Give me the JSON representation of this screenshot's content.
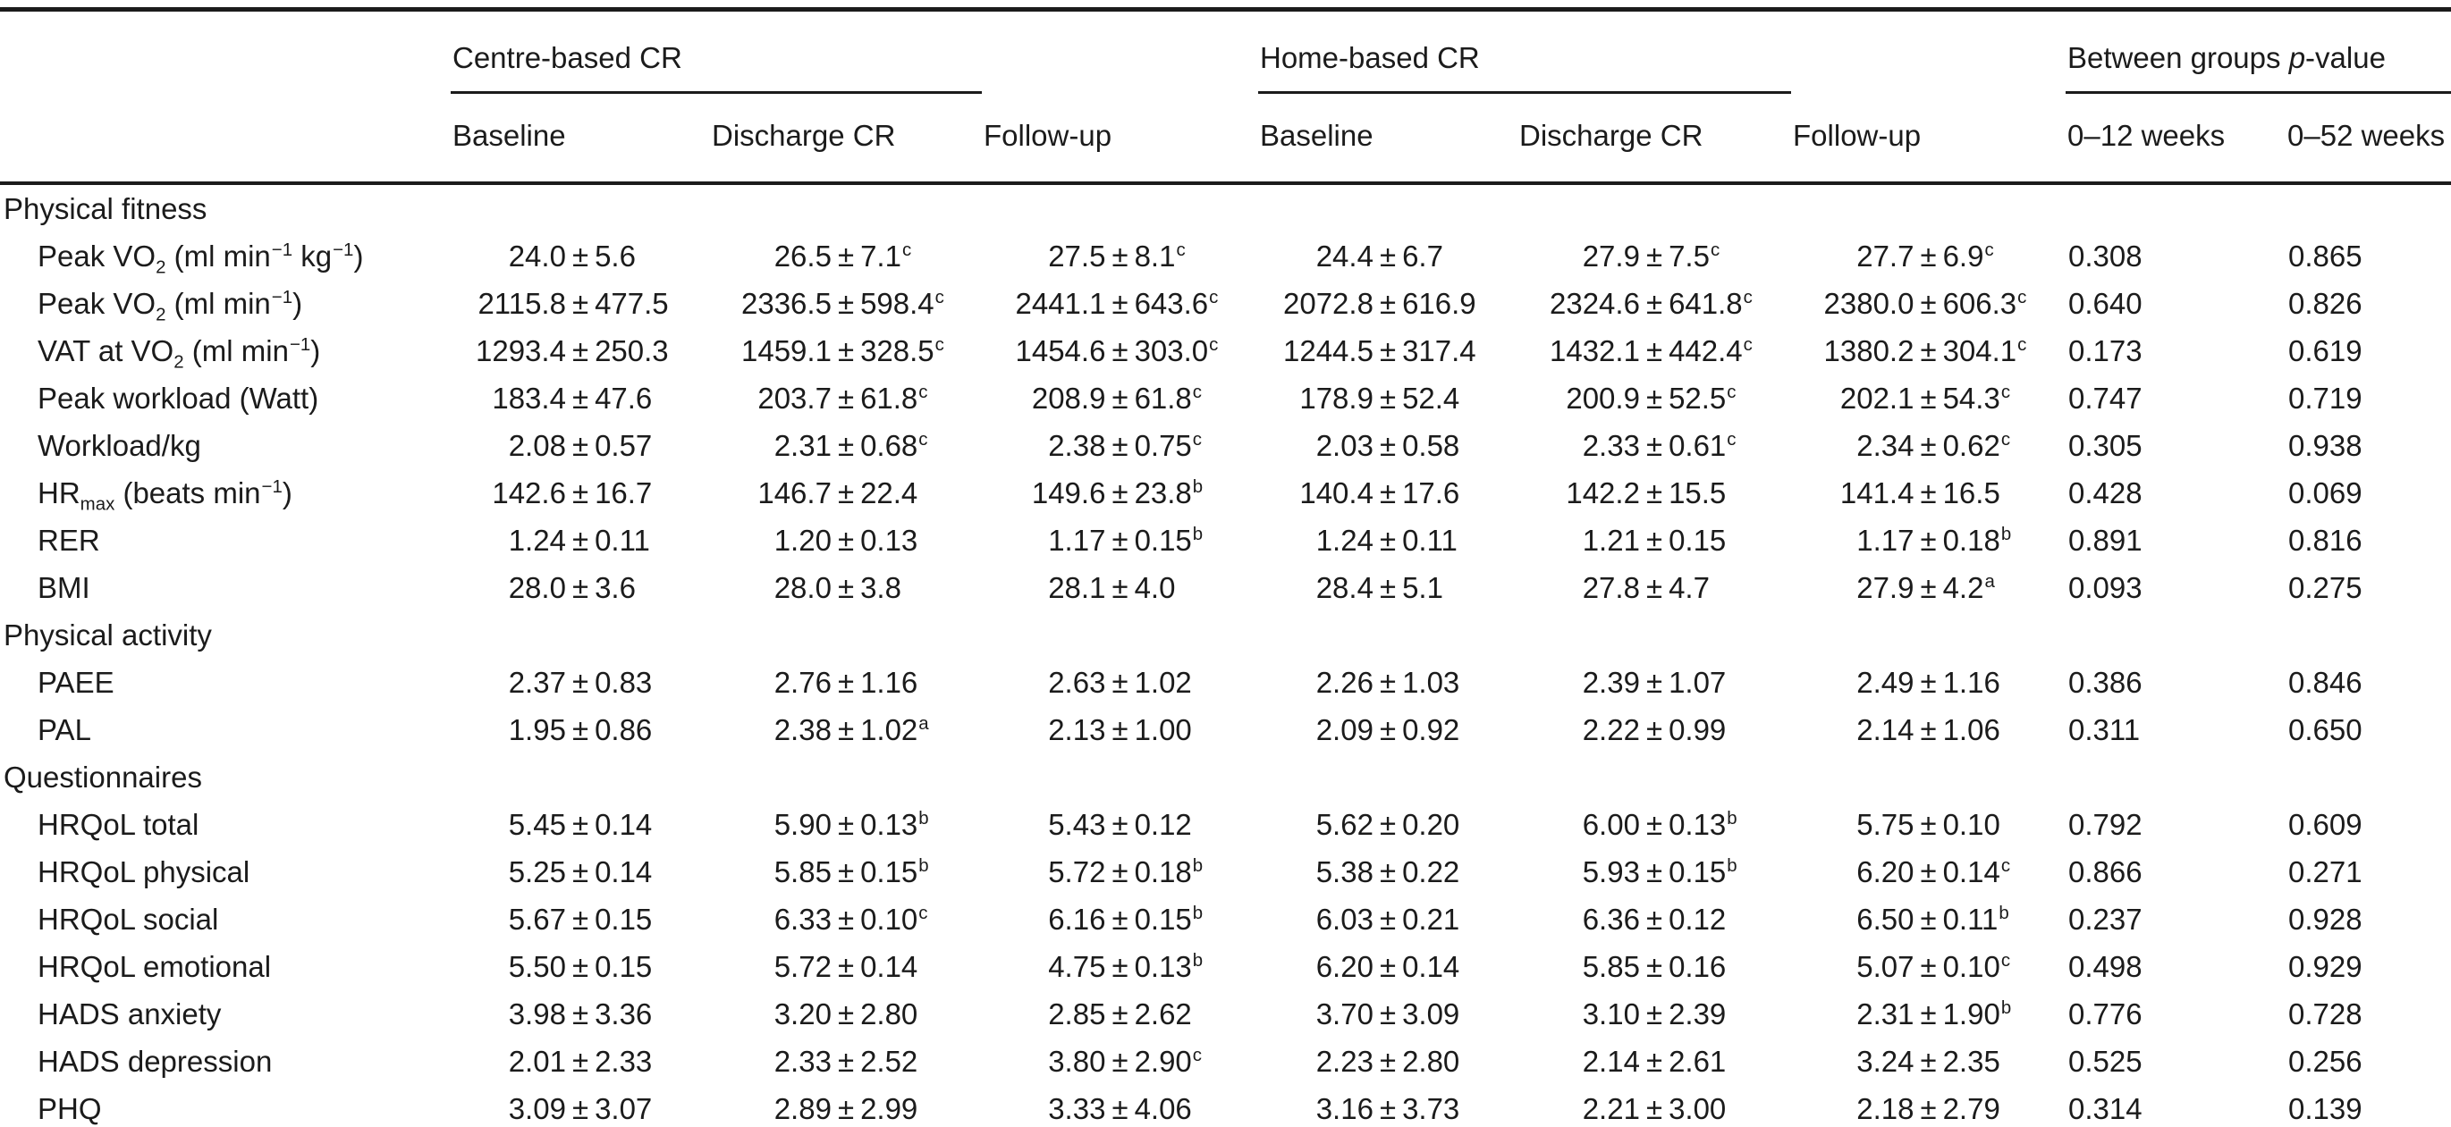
{
  "table": {
    "header": {
      "centre": "Centre-based CR",
      "home": "Home-based CR",
      "between_parts": [
        "Between groups ",
        [
          "i",
          "p"
        ],
        "-value"
      ],
      "sub": [
        "Baseline",
        "Discharge CR",
        "Follow-up",
        "Baseline",
        "Discharge CR",
        "Follow-up",
        "0–12 weeks",
        "0–52 weeks"
      ]
    },
    "sections": [
      {
        "title": "Physical fitness",
        "rows": [
          {
            "label": [
              "Peak VO",
              [
                "sub",
                "2"
              ],
              " (ml min",
              [
                "sup",
                "−1"
              ],
              " kg",
              [
                "sup",
                "−1"
              ],
              ")"
            ],
            "values": [
              [
                "24.0",
                "5.6",
                ""
              ],
              [
                "26.5",
                "7.1",
                "c"
              ],
              [
                "27.5",
                "8.1",
                "c"
              ],
              [
                "24.4",
                "6.7",
                ""
              ],
              [
                "27.9",
                "7.5",
                "c"
              ],
              [
                "27.7",
                "6.9",
                "c"
              ]
            ],
            "p": [
              "0.308",
              "0.865"
            ]
          },
          {
            "label": [
              "Peak VO",
              [
                "sub",
                "2"
              ],
              " (ml min",
              [
                "sup",
                "−1"
              ],
              ")"
            ],
            "values": [
              [
                "2115.8",
                "477.5",
                ""
              ],
              [
                "2336.5",
                "598.4",
                "c"
              ],
              [
                "2441.1",
                "643.6",
                "c"
              ],
              [
                "2072.8",
                "616.9",
                ""
              ],
              [
                "2324.6",
                "641.8",
                "c"
              ],
              [
                "2380.0",
                "606.3",
                "c"
              ]
            ],
            "p": [
              "0.640",
              "0.826"
            ]
          },
          {
            "label": [
              "VAT at VO",
              [
                "sub",
                "2"
              ],
              " (ml min",
              [
                "sup",
                "−1"
              ],
              ")"
            ],
            "values": [
              [
                "1293.4",
                "250.3",
                ""
              ],
              [
                "1459.1",
                "328.5",
                "c"
              ],
              [
                "1454.6",
                "303.0",
                "c"
              ],
              [
                "1244.5",
                "317.4",
                ""
              ],
              [
                "1432.1",
                "442.4",
                "c"
              ],
              [
                "1380.2",
                "304.1",
                "c"
              ]
            ],
            "p": [
              "0.173",
              "0.619"
            ]
          },
          {
            "label": [
              "Peak workload (Watt)"
            ],
            "values": [
              [
                "183.4",
                "47.6",
                ""
              ],
              [
                "203.7",
                "61.8",
                "c"
              ],
              [
                "208.9",
                "61.8",
                "c"
              ],
              [
                "178.9",
                "52.4",
                ""
              ],
              [
                "200.9",
                "52.5",
                "c"
              ],
              [
                "202.1",
                "54.3",
                "c"
              ]
            ],
            "p": [
              "0.747",
              "0.719"
            ]
          },
          {
            "label": [
              "Workload/kg"
            ],
            "values": [
              [
                "2.08",
                "0.57",
                ""
              ],
              [
                "2.31",
                "0.68",
                "c"
              ],
              [
                "2.38",
                "0.75",
                "c"
              ],
              [
                "2.03",
                "0.58",
                ""
              ],
              [
                "2.33",
                "0.61",
                "c"
              ],
              [
                "2.34",
                "0.62",
                "c"
              ]
            ],
            "p": [
              "0.305",
              "0.938"
            ]
          },
          {
            "label": [
              "HR",
              [
                "sub",
                "max"
              ],
              " (beats min",
              [
                "sup",
                "−1"
              ],
              ")"
            ],
            "values": [
              [
                "142.6",
                "16.7",
                ""
              ],
              [
                "146.7",
                "22.4",
                ""
              ],
              [
                "149.6",
                "23.8",
                "b"
              ],
              [
                "140.4",
                "17.6",
                ""
              ],
              [
                "142.2",
                "15.5",
                ""
              ],
              [
                "141.4",
                "16.5",
                ""
              ]
            ],
            "p": [
              "0.428",
              "0.069"
            ]
          },
          {
            "label": [
              "RER"
            ],
            "values": [
              [
                "1.24",
                "0.11",
                ""
              ],
              [
                "1.20",
                "0.13",
                ""
              ],
              [
                "1.17",
                "0.15",
                "b"
              ],
              [
                "1.24",
                "0.11",
                ""
              ],
              [
                "1.21",
                "0.15",
                ""
              ],
              [
                "1.17",
                "0.18",
                "b"
              ]
            ],
            "p": [
              "0.891",
              "0.816"
            ]
          },
          {
            "label": [
              "BMI"
            ],
            "values": [
              [
                "28.0",
                "3.6",
                ""
              ],
              [
                "28.0",
                "3.8",
                ""
              ],
              [
                "28.1",
                "4.0",
                ""
              ],
              [
                "28.4",
                "5.1",
                ""
              ],
              [
                "27.8",
                "4.7",
                ""
              ],
              [
                "27.9",
                "4.2",
                "a"
              ]
            ],
            "p": [
              "0.093",
              "0.275"
            ]
          }
        ]
      },
      {
        "title": "Physical activity",
        "rows": [
          {
            "label": [
              "PAEE"
            ],
            "values": [
              [
                "2.37",
                "0.83",
                ""
              ],
              [
                "2.76",
                "1.16",
                ""
              ],
              [
                "2.63",
                "1.02",
                ""
              ],
              [
                "2.26",
                "1.03",
                ""
              ],
              [
                "2.39",
                "1.07",
                ""
              ],
              [
                "2.49",
                "1.16",
                ""
              ]
            ],
            "p": [
              "0.386",
              "0.846"
            ]
          },
          {
            "label": [
              "PAL"
            ],
            "values": [
              [
                "1.95",
                "0.86",
                ""
              ],
              [
                "2.38",
                "1.02",
                "a"
              ],
              [
                "2.13",
                "1.00",
                ""
              ],
              [
                "2.09",
                "0.92",
                ""
              ],
              [
                "2.22",
                "0.99",
                ""
              ],
              [
                "2.14",
                "1.06",
                ""
              ]
            ],
            "p": [
              "0.311",
              "0.650"
            ]
          }
        ]
      },
      {
        "title": "Questionnaires",
        "rows": [
          {
            "label": [
              "HRQoL total"
            ],
            "values": [
              [
                "5.45",
                "0.14",
                ""
              ],
              [
                "5.90",
                "0.13",
                "b"
              ],
              [
                "5.43",
                "0.12",
                ""
              ],
              [
                "5.62",
                "0.20",
                ""
              ],
              [
                "6.00",
                "0.13",
                "b"
              ],
              [
                "5.75",
                "0.10",
                ""
              ]
            ],
            "p": [
              "0.792",
              "0.609"
            ]
          },
          {
            "label": [
              "HRQoL physical"
            ],
            "values": [
              [
                "5.25",
                "0.14",
                ""
              ],
              [
                "5.85",
                "0.15",
                "b"
              ],
              [
                "5.72",
                "0.18",
                "b"
              ],
              [
                "5.38",
                "0.22",
                ""
              ],
              [
                "5.93",
                "0.15",
                "b"
              ],
              [
                "6.20",
                "0.14",
                "c"
              ]
            ],
            "p": [
              "0.866",
              "0.271"
            ]
          },
          {
            "label": [
              "HRQoL social"
            ],
            "values": [
              [
                "5.67",
                "0.15",
                ""
              ],
              [
                "6.33",
                "0.10",
                "c"
              ],
              [
                "6.16",
                "0.15",
                "b"
              ],
              [
                "6.03",
                "0.21",
                ""
              ],
              [
                "6.36",
                "0.12",
                ""
              ],
              [
                "6.50",
                "0.11",
                "b"
              ]
            ],
            "p": [
              "0.237",
              "0.928"
            ]
          },
          {
            "label": [
              "HRQoL emotional"
            ],
            "values": [
              [
                "5.50",
                "0.15",
                ""
              ],
              [
                "5.72",
                "0.14",
                ""
              ],
              [
                "4.75",
                "0.13",
                "b"
              ],
              [
                "6.20",
                "0.14",
                ""
              ],
              [
                "5.85",
                "0.16",
                ""
              ],
              [
                "5.07",
                "0.10",
                "c"
              ]
            ],
            "p": [
              "0.498",
              "0.929"
            ]
          },
          {
            "label": [
              "HADS anxiety"
            ],
            "values": [
              [
                "3.98",
                "3.36",
                ""
              ],
              [
                "3.20",
                "2.80",
                ""
              ],
              [
                "2.85",
                "2.62",
                ""
              ],
              [
                "3.70",
                "3.09",
                ""
              ],
              [
                "3.10",
                "2.39",
                ""
              ],
              [
                "2.31",
                "1.90",
                "b"
              ]
            ],
            "p": [
              "0.776",
              "0.728"
            ]
          },
          {
            "label": [
              "HADS depression"
            ],
            "values": [
              [
                "2.01",
                "2.33",
                ""
              ],
              [
                "2.33",
                "2.52",
                ""
              ],
              [
                "3.80",
                "2.90",
                "c"
              ],
              [
                "2.23",
                "2.80",
                ""
              ],
              [
                "2.14",
                "2.61",
                ""
              ],
              [
                "3.24",
                "2.35",
                ""
              ]
            ],
            "p": [
              "0.525",
              "0.256"
            ]
          },
          {
            "label": [
              "PHQ"
            ],
            "values": [
              [
                "3.09",
                "3.07",
                ""
              ],
              [
                "2.89",
                "2.99",
                ""
              ],
              [
                "3.33",
                "4.06",
                ""
              ],
              [
                "3.16",
                "3.73",
                ""
              ],
              [
                "2.21",
                "3.00",
                ""
              ],
              [
                "2.18",
                "2.79",
                ""
              ]
            ],
            "p": [
              "0.314",
              "0.139"
            ]
          }
        ]
      }
    ]
  }
}
